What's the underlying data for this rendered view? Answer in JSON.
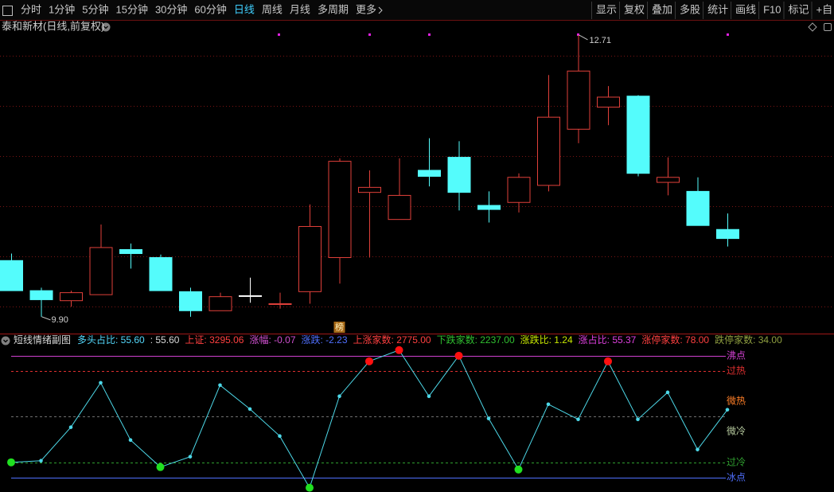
{
  "toolbar": {
    "periods": [
      "分时",
      "1分钟",
      "5分钟",
      "15分钟",
      "30分钟",
      "60分钟",
      "日线",
      "周线",
      "月线",
      "多周期",
      "更多"
    ],
    "tools": [
      "显示",
      "复权",
      "叠加",
      "多股",
      "统计",
      "画线",
      "F10",
      "标记",
      "+自"
    ]
  },
  "chart_data": [
    {
      "type": "candlestick",
      "title": "泰和新材(日线,前复权)",
      "open": [
        10.46,
        10.16,
        10.06,
        10.12,
        10.57,
        10.49,
        10.15,
        9.96,
        10.11,
        10.03,
        10.15,
        10.49,
        11.14,
        10.87,
        11.36,
        11.49,
        11.01,
        11.04,
        11.21,
        11.77,
        11.99,
        12.1,
        11.24,
        11.15,
        10.77
      ],
      "high": [
        10.53,
        10.19,
        10.16,
        10.82,
        10.63,
        10.52,
        10.19,
        10.14,
        10.29,
        10.14,
        11.02,
        11.48,
        11.36,
        11.48,
        11.68,
        11.65,
        11.15,
        11.33,
        12.31,
        12.71,
        12.2,
        12.11,
        11.49,
        11.29,
        10.93
      ],
      "low": [
        10.16,
        9.9,
        10.0,
        10.12,
        10.38,
        10.16,
        9.9,
        9.96,
        10.04,
        9.98,
        10.03,
        10.23,
        10.49,
        10.87,
        11.2,
        10.96,
        10.84,
        10.94,
        11.15,
        11.63,
        11.81,
        11.3,
        11.11,
        10.81,
        10.6
      ],
      "close": [
        10.16,
        10.07,
        10.14,
        10.59,
        10.53,
        10.16,
        9.96,
        10.1,
        10.11,
        10.03,
        10.8,
        11.45,
        11.19,
        11.11,
        11.3,
        11.14,
        10.97,
        11.29,
        11.89,
        12.35,
        12.09,
        11.33,
        11.29,
        10.81,
        10.68
      ],
      "colors": [
        "#54fcfc",
        "#54fcfc",
        "#e0403a",
        "#e0403a",
        "#54fcfc",
        "#54fcfc",
        "#54fcfc",
        "#e0403a",
        "#ffffff",
        "#e0403a",
        "#e0403a",
        "#e0403a",
        "#e0403a",
        "#e0403a",
        "#54fcfc",
        "#54fcfc",
        "#54fcfc",
        "#e0403a",
        "#e0403a",
        "#e0403a",
        "#e0403a",
        "#54fcfc",
        "#e0403a",
        "#54fcfc",
        "#54fcfc"
      ],
      "ylim": [
        9.74,
        12.86
      ],
      "grid_values": [
        10,
        10.5,
        11,
        11.5,
        12,
        12.5
      ],
      "annotations": [
        "12.71",
        "9.90"
      ],
      "badge": "榜"
    },
    {
      "type": "line",
      "title": "短线情绪副图",
      "readouts": [
        {
          "text": "多头占比: 55.60",
          "color": "#54d8fc"
        },
        {
          "text": ": 55.60",
          "color": "#d8d8d8"
        },
        {
          "text": "上证: 3295.06",
          "color": "#ff4040"
        },
        {
          "text": "涨幅: -0.07",
          "color": "#d050d0"
        },
        {
          "text": "涨跌: -2.23",
          "color": "#5070ff"
        },
        {
          "text": "上涨家数: 2775.00",
          "color": "#ff4040"
        },
        {
          "text": "下跌家数: 2237.00",
          "color": "#30c030"
        },
        {
          "text": "涨跌比: 1.24",
          "color": "#c8e800"
        },
        {
          "text": "涨占比: 55.37",
          "color": "#e040e0"
        },
        {
          "text": "涨停家数: 78.00",
          "color": "#ff4040"
        },
        {
          "text": "跌停家数: 34.00",
          "color": "#90a040"
        }
      ],
      "values": [
        12.4,
        13.7,
        41.2,
        77.8,
        30.7,
        8.5,
        17.0,
        75.8,
        56.2,
        34.0,
        -8.5,
        66.7,
        95.4,
        104.6,
        66.7,
        100,
        48.4,
        6.5,
        60.1,
        47.7,
        95.4,
        47.7,
        69.9,
        22.9,
        55.6
      ],
      "color": "#4dd8e8",
      "hot_color": "#ff1010",
      "cold_color": "#20e020",
      "ylim": [
        -12,
        111
      ],
      "levels": [
        {
          "label": "沸点",
          "value": 100,
          "color": "#d040d0",
          "dashed": false
        },
        {
          "label": "过热",
          "value": 87.5,
          "color": "#e03030",
          "dashed": true
        },
        {
          "label": "微热",
          "color": "#ff7f27"
        },
        {
          "label": "微冷",
          "color": "#b8cca0"
        },
        {
          "label": "过冷",
          "value": 12.5,
          "color": "#30a030",
          "dashed": true
        },
        {
          "label": "冰点",
          "value": 0,
          "color": "#5070ff",
          "dashed": false
        }
      ],
      "mid_line": {
        "value": 50,
        "color": "#707070"
      }
    }
  ]
}
